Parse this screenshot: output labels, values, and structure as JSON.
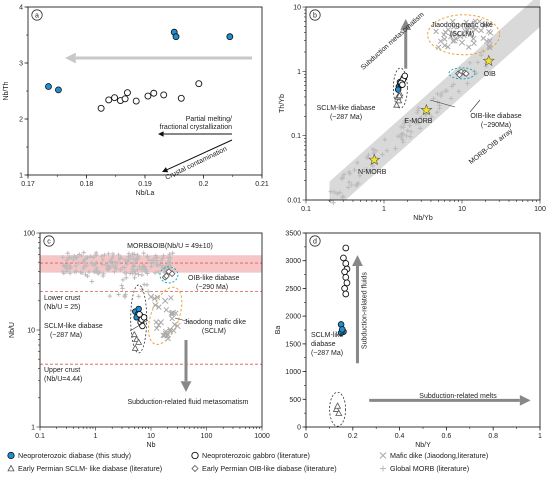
{
  "colors": {
    "blue": "#1f8fd0",
    "gray_field": "#cfcfcf",
    "array_band": "#d9d9d9",
    "pink_band": "#f6c6c6",
    "orange_dash": "#e8a33a",
    "cyan_dash": "#1aa7b8",
    "star": "#f4e22a",
    "arrow_gray": "#9a9a9a"
  },
  "chart_data": [
    {
      "panel_letter": "a",
      "type": "scatter",
      "xlabel": "Nb/La",
      "ylabel": "Nb/Th",
      "xlim": [
        0.17,
        0.21
      ],
      "ylim": [
        1,
        4
      ],
      "xticks": [
        "0.17",
        "0.18",
        "0.19",
        "0.2",
        "0.21"
      ],
      "yticks": [
        "1",
        "2",
        "3",
        "4"
      ],
      "series": [
        {
          "key": "neo_diabase",
          "points": [
            [
              0.1735,
              2.58
            ],
            [
              0.1752,
              2.52
            ],
            [
              0.195,
              3.55
            ],
            [
              0.1953,
              3.47
            ],
            [
              0.2045,
              3.47
            ]
          ]
        },
        {
          "key": "neo_gabbro",
          "points": [
            [
              0.1825,
              2.19
            ],
            [
              0.1838,
              2.34
            ],
            [
              0.1848,
              2.38
            ],
            [
              0.1858,
              2.33
            ],
            [
              0.1866,
              2.36
            ],
            [
              0.187,
              2.47
            ],
            [
              0.1885,
              2.32
            ],
            [
              0.1905,
              2.41
            ],
            [
              0.1915,
              2.46
            ],
            [
              0.1932,
              2.43
            ],
            [
              0.1962,
              2.37
            ],
            [
              0.1992,
              2.63
            ]
          ]
        }
      ],
      "annotations": [
        "Partial melting/",
        "fractional crystallization",
        "Crustal contamination"
      ]
    },
    {
      "panel_letter": "b",
      "type": "scatter",
      "xlabel": "Nb/Yb",
      "ylabel": "Th/Yb",
      "xscale": "log",
      "yscale": "log",
      "xlim": [
        0.1,
        100
      ],
      "ylim": [
        0.01,
        10
      ],
      "xticks": [
        "0.1",
        "1",
        "10",
        "100"
      ],
      "yticks": [
        "0.01",
        "0.1",
        "1",
        "10"
      ],
      "series": [
        {
          "key": "neo_diabase",
          "points": [
            [
              1.55,
              0.58
            ],
            [
              1.6,
              0.68
            ],
            [
              1.52,
              0.52
            ],
            [
              1.65,
              0.62
            ]
          ]
        },
        {
          "key": "neo_gabbro",
          "points": [
            [
              1.7,
              0.7
            ],
            [
              1.8,
              0.8
            ],
            [
              1.75,
              0.74
            ],
            [
              1.65,
              0.66
            ],
            [
              1.85,
              0.85
            ],
            [
              1.72,
              0.62
            ]
          ]
        },
        {
          "key": "sclm_like",
          "points": [
            [
              1.55,
              0.35
            ],
            [
              1.5,
              0.4
            ],
            [
              1.6,
              0.45
            ],
            [
              1.45,
              0.3
            ],
            [
              1.58,
              0.42
            ]
          ]
        },
        {
          "key": "oib_like",
          "points": [
            [
              9.0,
              0.92
            ],
            [
              9.8,
              0.98
            ],
            [
              10.8,
              0.95
            ],
            [
              9.3,
              0.88
            ],
            [
              11.3,
              0.92
            ]
          ]
        },
        {
          "key": "jiaodong",
          "points": [
            [
              9.5,
              3.5
            ],
            [
              11,
              4.2
            ],
            [
              13,
              3.8
            ],
            [
              8,
              3.0
            ],
            [
              15,
              4.5
            ],
            [
              10,
              2.8
            ],
            [
              12,
              5.0
            ],
            [
              7.5,
              3.9
            ],
            [
              14,
              3.2
            ]
          ]
        }
      ],
      "references": [
        {
          "label": "N-MORB",
          "x": 0.75,
          "y": 0.042
        },
        {
          "label": "E-MORB",
          "x": 3.5,
          "y": 0.25
        },
        {
          "label": "OIB",
          "x": 22,
          "y": 1.45
        }
      ],
      "annotations": [
        "Subduction metasomatism",
        "Jiaodong mafic dike",
        "(SCLM)",
        "SCLM-like diabase",
        "(~287 Ma)",
        "OIB-like diabase",
        "(~290Ma)",
        "MORB-OIB array"
      ]
    },
    {
      "panel_letter": "c",
      "type": "scatter",
      "xlabel": "Nb",
      "ylabel": "Nb/U",
      "xscale": "log",
      "yscale": "log",
      "xlim": [
        0.1,
        1000
      ],
      "ylim": [
        1,
        100
      ],
      "xticks": [
        "0.1",
        "1",
        "10",
        "100",
        "1000"
      ],
      "yticks": [
        "1",
        "10",
        "100"
      ],
      "series": [
        {
          "key": "neo_diabase",
          "points": [
            [
              5.2,
              15.5
            ],
            [
              5.8,
              14.5
            ],
            [
              6.0,
              16.5
            ],
            [
              5.5,
              13.5
            ],
            [
              6.5,
              14.0
            ]
          ]
        },
        {
          "key": "neo_gabbro",
          "points": [
            [
              6.5,
              12.0
            ],
            [
              7.0,
              11.0
            ],
            [
              6.8,
              12.8
            ],
            [
              7.5,
              13.5
            ],
            [
              6.2,
              14.5
            ]
          ]
        },
        {
          "key": "sclm_like",
          "points": [
            [
              5.0,
              9.0
            ],
            [
              5.5,
              8.0
            ],
            [
              6.0,
              7.5
            ],
            [
              5.2,
              6.5
            ]
          ]
        },
        {
          "key": "oib_like",
          "points": [
            [
              18,
              35
            ],
            [
              21,
              40
            ],
            [
              19,
              36
            ],
            [
              24,
              38
            ]
          ]
        },
        {
          "key": "jiaodong",
          "points": [
            [
              10,
              22
            ],
            [
              15,
              12
            ],
            [
              20,
              9
            ],
            [
              25,
              15
            ],
            [
              12,
              18
            ],
            [
              18,
              20
            ],
            [
              30,
              11
            ]
          ]
        }
      ],
      "annotations": [
        "MORB&OIB(Nb/U = 49±10)",
        "OIB-like diabase",
        "(~290 Ma)",
        "Lower crust",
        "(Nb/U = 25)",
        "SCLM-like diabase",
        "(~287 Ma)",
        "Jiaodong mafic dike",
        "(SCLM)",
        "Upper crust",
        "(Nb/U=4.44)",
        "Subduction-related fluid metasomatism"
      ]
    },
    {
      "panel_letter": "d",
      "type": "scatter",
      "xlabel": "Nb/Y",
      "ylabel": "Ba",
      "xlim": [
        0,
        1
      ],
      "ylim": [
        0,
        3500
      ],
      "xticks": [
        "0",
        "0.2",
        "0.4",
        "0.6",
        "0.8",
        "1"
      ],
      "yticks": [
        "0",
        "500",
        "1000",
        "1500",
        "2000",
        "2500",
        "3000",
        "3500"
      ],
      "series": [
        {
          "key": "neo_diabase",
          "points": [
            [
              0.15,
              1850
            ],
            [
              0.16,
              1720
            ],
            [
              0.15,
              1700
            ],
            [
              0.155,
              1760
            ]
          ]
        },
        {
          "key": "neo_gabbro",
          "points": [
            [
              0.17,
              3230
            ],
            [
              0.16,
              3050
            ],
            [
              0.17,
              2950
            ],
            [
              0.175,
              2850
            ],
            [
              0.165,
              2800
            ],
            [
              0.17,
              2700
            ],
            [
              0.175,
              2600
            ],
            [
              0.165,
              2500
            ],
            [
              0.17,
              2400
            ]
          ]
        },
        {
          "key": "sclm_like",
          "points": [
            [
              0.13,
              320
            ],
            [
              0.14,
              250
            ],
            [
              0.135,
              380
            ]
          ]
        }
      ],
      "annotations": [
        "Subduction-related fluids",
        "SCLM-like",
        "diabase",
        "(~287 Ma)",
        "Subduction-related melts"
      ]
    }
  ],
  "legend": [
    {
      "key": "neo_diabase",
      "label": "Neoproterozoic diabase (this study)"
    },
    {
      "key": "neo_gabbro",
      "label": "Neoproterozoic gabbro (literature)"
    },
    {
      "key": "jiaodong",
      "label": "Mafic dike (Jiaodong,literature)"
    },
    {
      "key": "sclm_like",
      "label": "Early Permian SCLM- like diabase (literature)"
    },
    {
      "key": "oib_like",
      "label": "Early Permian OIB-like diabase (literature)"
    },
    {
      "key": "global_morb",
      "label": "Global MORB (literature)"
    }
  ]
}
